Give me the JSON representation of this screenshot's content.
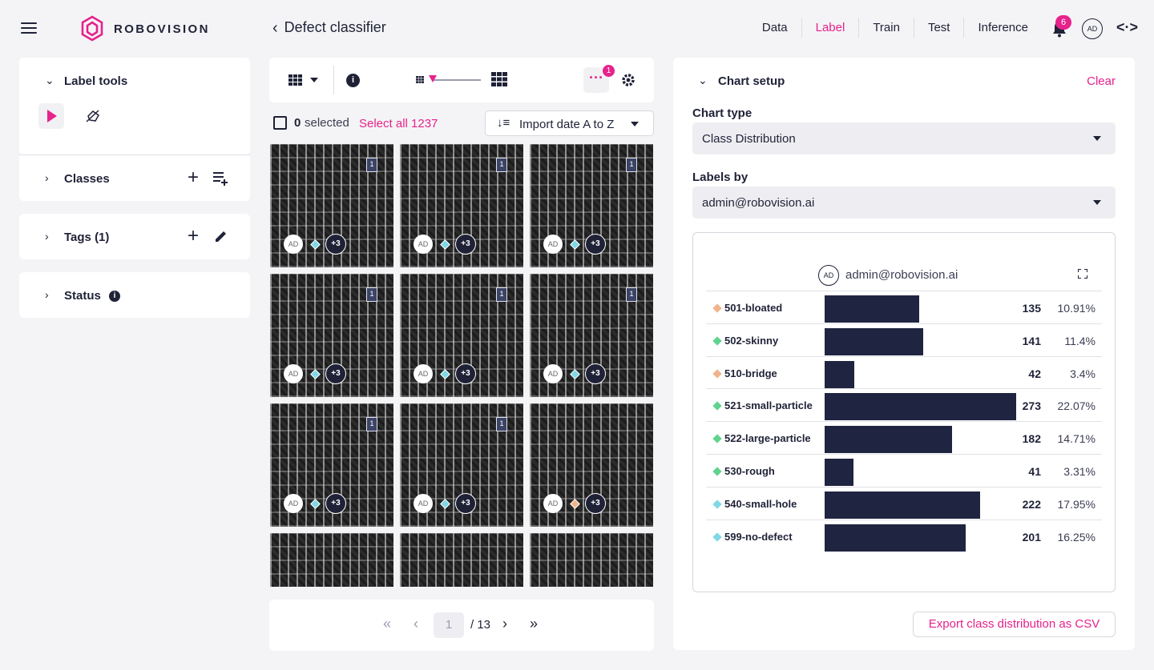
{
  "brand": {
    "name": "ROBOVISION",
    "accent": "#e6228c",
    "dark": "#1f2237"
  },
  "header": {
    "title": "Defect classifier",
    "nav": [
      {
        "label": "Data",
        "active": false
      },
      {
        "label": "Label",
        "active": true
      },
      {
        "label": "Train",
        "active": false
      },
      {
        "label": "Test",
        "active": false
      },
      {
        "label": "Inference",
        "active": false
      }
    ],
    "notifications": "6",
    "user_initials": "AD"
  },
  "left": {
    "label_tools": "Label tools",
    "classes": "Classes",
    "tags": "Tags (1)",
    "status": "Status"
  },
  "toolbar": {
    "filter_badge": "1"
  },
  "selection": {
    "count": "0",
    "selected_label": "selected",
    "select_all": "Select all 1237",
    "sort": "Import date A to Z"
  },
  "tiles": [
    {
      "avatar": "AD",
      "more": "+3",
      "bookmark": "1",
      "diamond": "#7fd8e6"
    },
    {
      "avatar": "AD",
      "more": "+3",
      "bookmark": "1",
      "diamond": "#7fd8e6"
    },
    {
      "avatar": "AD",
      "more": "+3",
      "bookmark": "1",
      "diamond": "#7fd8e6"
    },
    {
      "avatar": "AD",
      "more": "+3",
      "bookmark": "1",
      "diamond": "#7fd8e6"
    },
    {
      "avatar": "AD",
      "more": "+3",
      "bookmark": "1",
      "diamond": "#7fd8e6"
    },
    {
      "avatar": "AD",
      "more": "+3",
      "bookmark": "1",
      "diamond": "#7fd8e6"
    },
    {
      "avatar": "AD",
      "more": "+3",
      "bookmark": "1",
      "diamond": "#7fd8e6"
    },
    {
      "avatar": "AD",
      "more": "+3",
      "bookmark": "1",
      "diamond": "#7fd8e6"
    },
    {
      "avatar": "AD",
      "more": "+3",
      "bookmark": "",
      "diamond": "#f0b48c"
    }
  ],
  "pagination": {
    "current": "1",
    "total": "/ 13"
  },
  "chart_setup": {
    "title": "Chart setup",
    "clear": "Clear",
    "chart_type_label": "Chart type",
    "chart_type_value": "Class Distribution",
    "labels_by_label": "Labels by",
    "labels_by_value": "admin@robovision.ai",
    "chart_user_initials": "AD",
    "chart_user": "admin@robovision.ai",
    "export": "Export class distribution as CSV"
  },
  "chart_data": {
    "type": "bar",
    "orientation": "horizontal",
    "series_label": "admin@robovision.ai",
    "categories": [
      "501-bloated",
      "502-skinny",
      "510-bridge",
      "521-small-particle",
      "522-large-particle",
      "530-rough",
      "540-small-hole",
      "599-no-defect"
    ],
    "values": [
      135,
      141,
      42,
      273,
      182,
      41,
      222,
      201
    ],
    "percentages": [
      "10.91%",
      "11.4%",
      "3.4%",
      "22.07%",
      "14.71%",
      "3.31%",
      "17.95%",
      "16.25%"
    ],
    "class_colors": [
      "#f0b48c",
      "#5fd38d",
      "#f0b48c",
      "#5fd38d",
      "#5fd38d",
      "#5fd38d",
      "#7fd8e6",
      "#7fd8e6"
    ],
    "bar_color": "#1f2440",
    "max": 273
  }
}
